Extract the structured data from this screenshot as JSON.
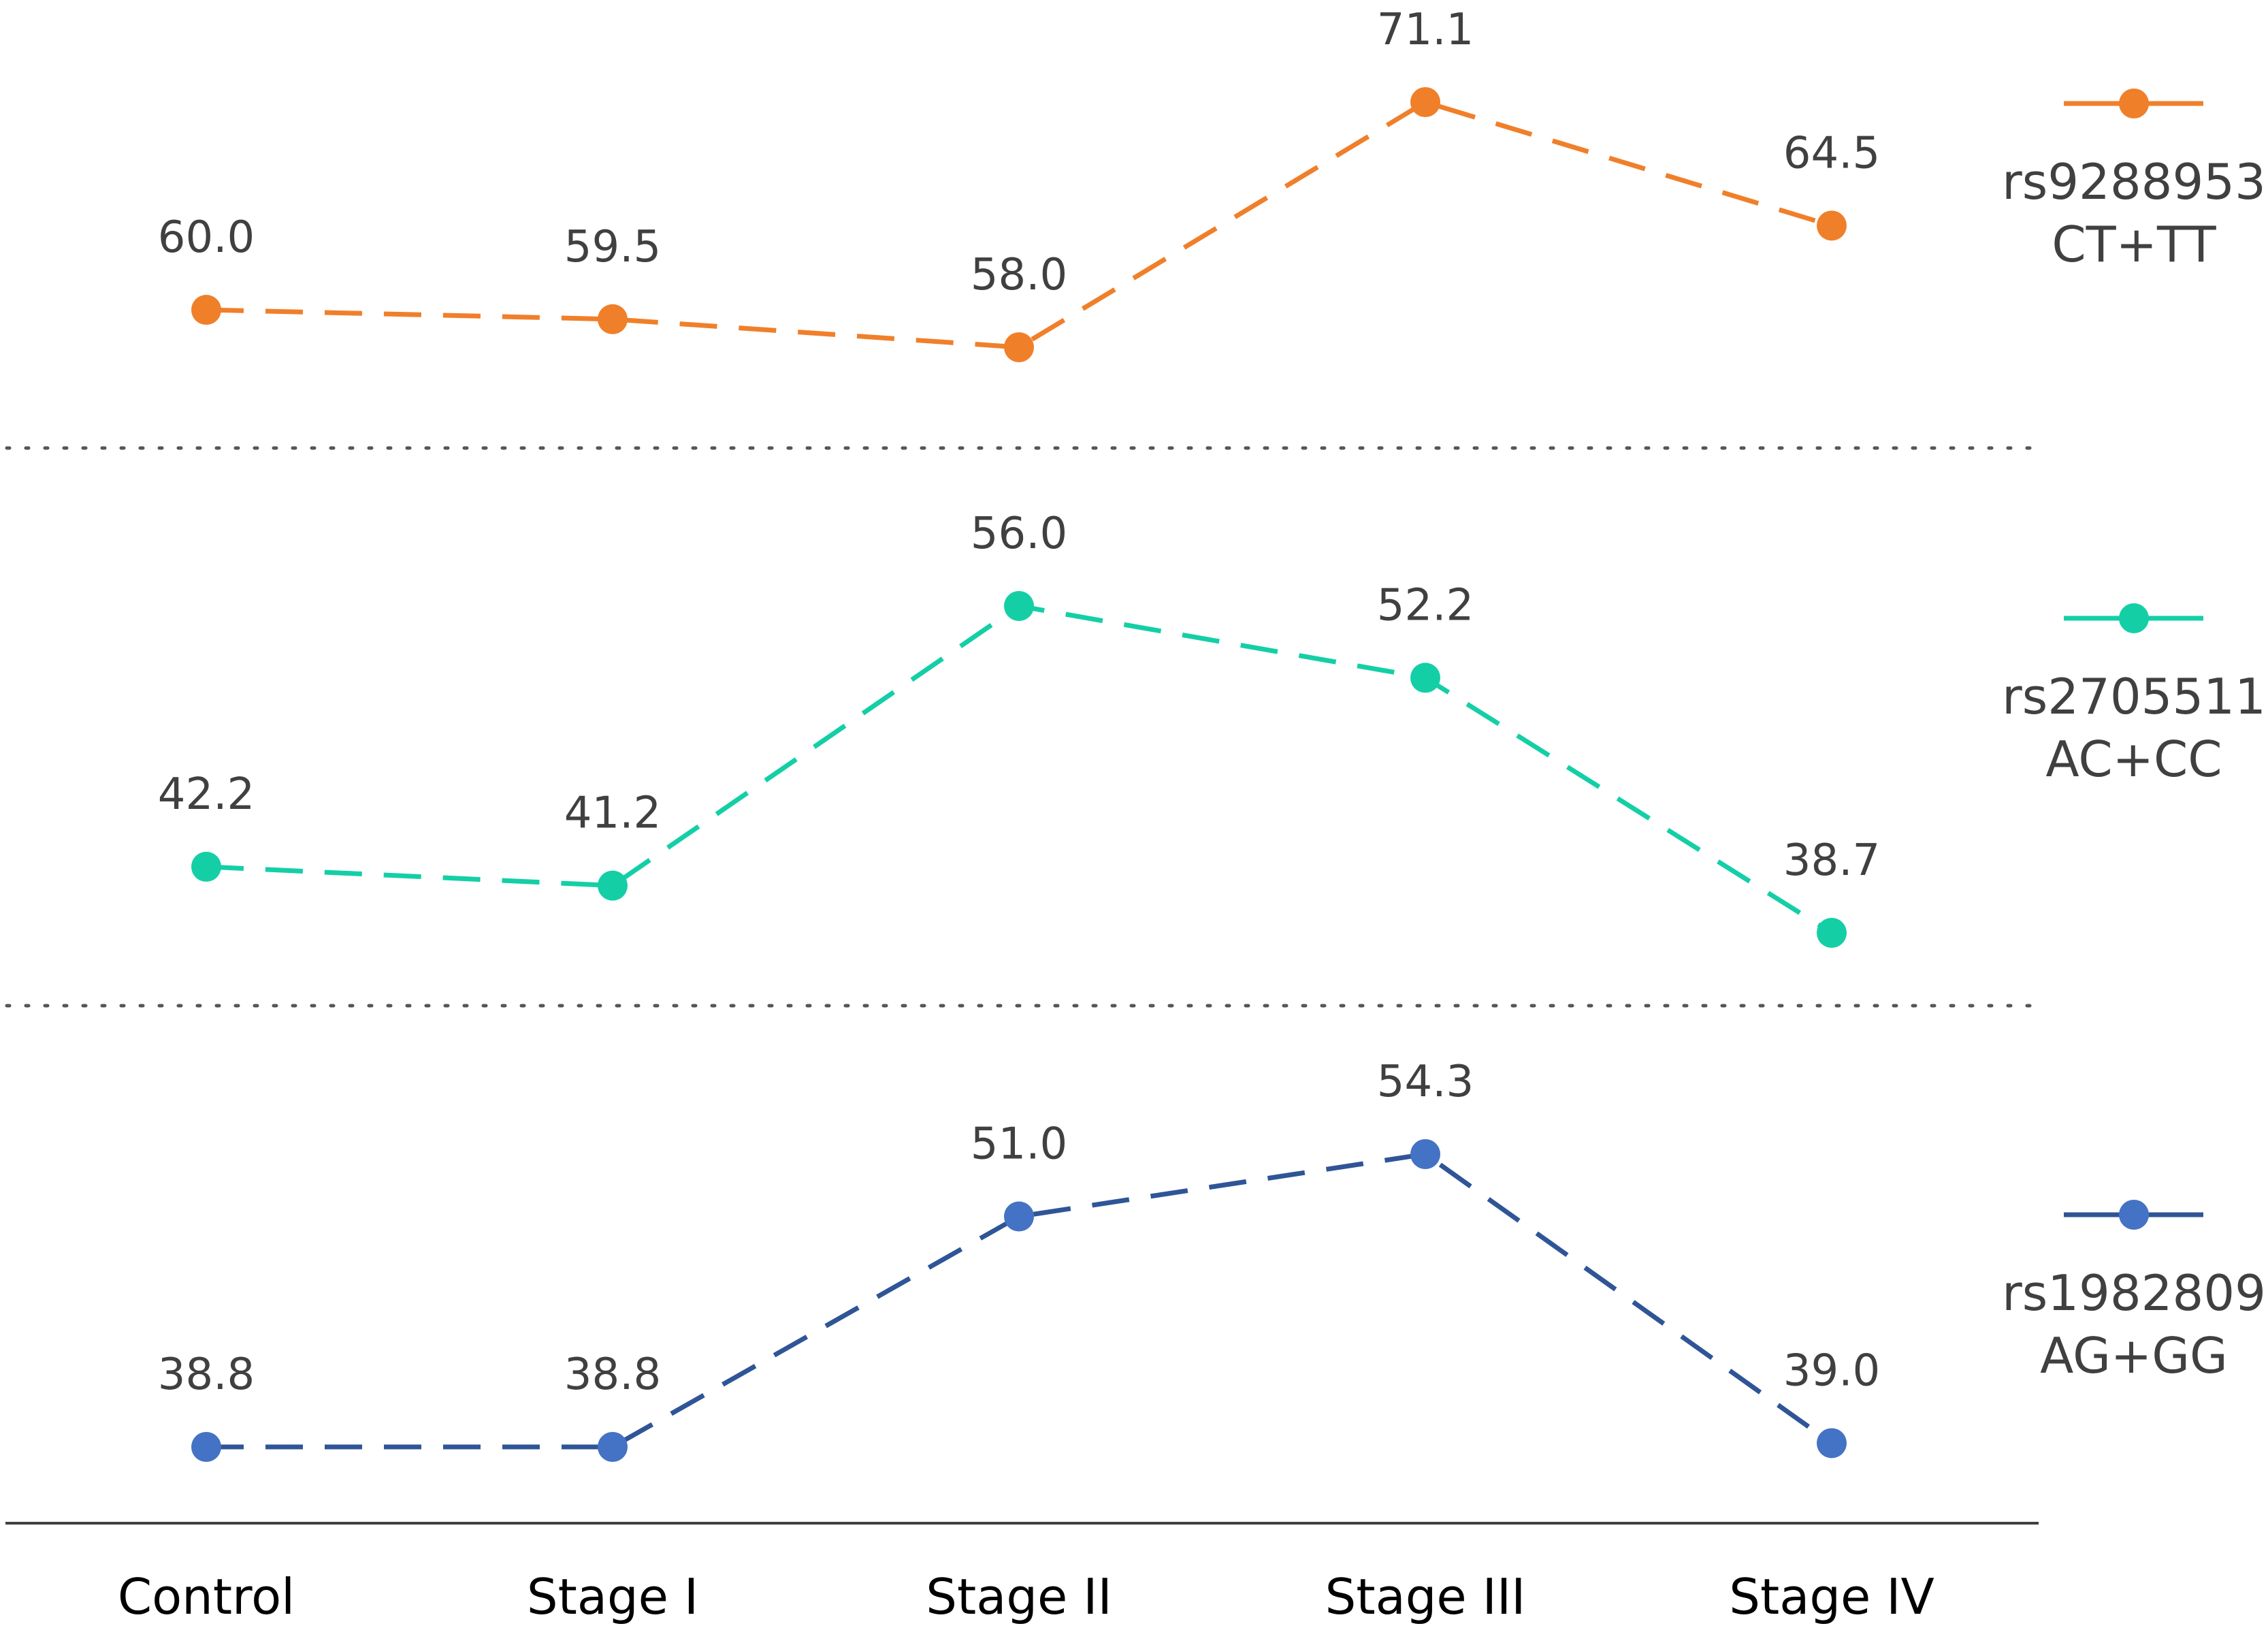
{
  "chart_data": {
    "type": "line",
    "categories": [
      "Control",
      "Stage I",
      "Stage II",
      "Stage III",
      "Stage IV"
    ],
    "series": [
      {
        "name": "rs9288953 CT+TT",
        "name_lines": [
          "rs9288953",
          "CT+TT"
        ],
        "values": [
          60.0,
          59.5,
          58.0,
          71.1,
          64.5
        ],
        "labels": [
          "60.0",
          "59.5",
          "58.0",
          "71.1",
          "64.5"
        ],
        "marker_color": "#F07F2A",
        "line_color": "#F07F2A",
        "ylim": [
          55,
          75
        ]
      },
      {
        "name": "rs2705511 AC+CC",
        "name_lines": [
          "rs2705511",
          "AC+CC"
        ],
        "values": [
          42.2,
          41.2,
          56.0,
          52.2,
          38.7
        ],
        "labels": [
          "42.2",
          "41.2",
          "56.0",
          "52.2",
          "38.7"
        ],
        "marker_color": "#14CFA6",
        "line_color": "#14CFA6",
        "ylim": [
          35,
          60
        ]
      },
      {
        "name": "rs1982809 AG+GG",
        "name_lines": [
          "rs1982809",
          "AG+GG"
        ],
        "values": [
          38.8,
          38.8,
          51.0,
          54.3,
          39.0
        ],
        "labels": [
          "38.8",
          "38.8",
          "51.0",
          "54.3",
          "39.0"
        ],
        "marker_color": "#4472C4",
        "line_color": "#2F5597",
        "ylim": [
          35,
          60
        ]
      }
    ],
    "line_style": "dashed",
    "legend_position": "right",
    "grid": false,
    "panel_separators": "dotted"
  }
}
